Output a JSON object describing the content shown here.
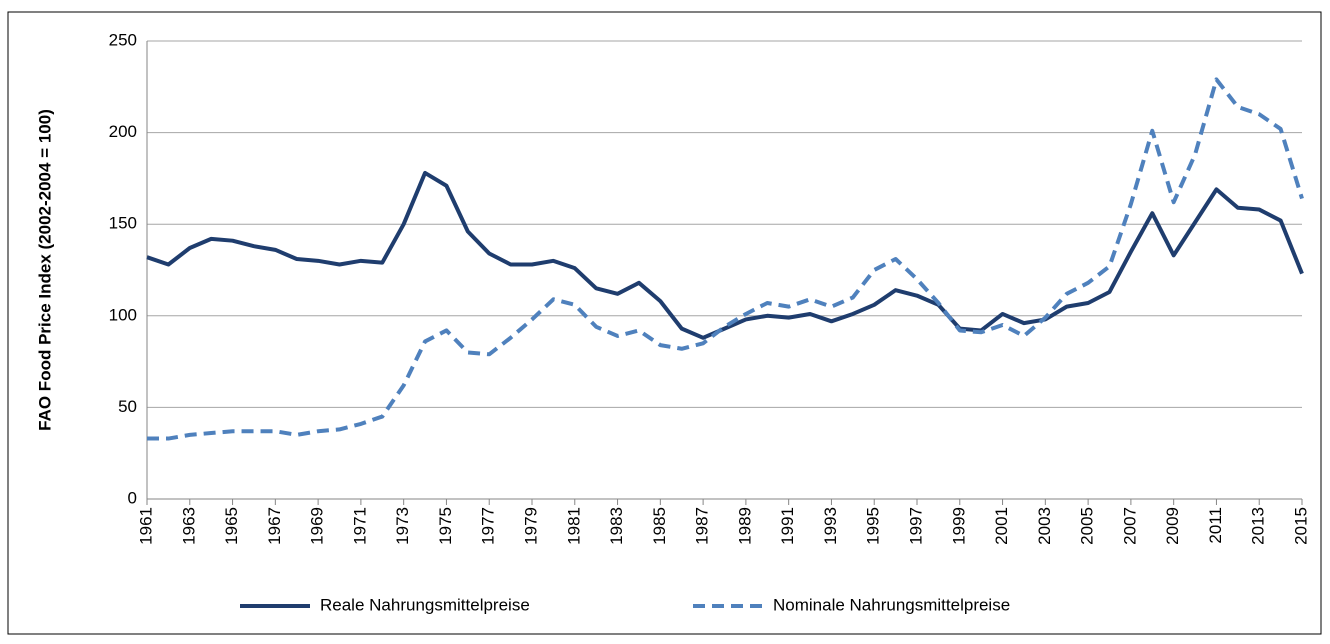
{
  "chart_data": {
    "type": "line",
    "y_label": "FAO Food Price Index (2002-2004 = 100)",
    "x": [
      1961,
      1962,
      1963,
      1964,
      1965,
      1966,
      1967,
      1968,
      1969,
      1970,
      1971,
      1972,
      1973,
      1974,
      1975,
      1976,
      1977,
      1978,
      1979,
      1980,
      1981,
      1982,
      1983,
      1984,
      1985,
      1986,
      1987,
      1988,
      1989,
      1990,
      1991,
      1992,
      1993,
      1994,
      1995,
      1996,
      1997,
      1998,
      1999,
      2000,
      2001,
      2002,
      2003,
      2004,
      2005,
      2006,
      2007,
      2008,
      2009,
      2010,
      2011,
      2012,
      2013,
      2014,
      2015
    ],
    "series": [
      {
        "name": "Reale Nahrungsmittelpreise",
        "color": "#1f3d6e",
        "dashed": false,
        "values": [
          132,
          128,
          137,
          142,
          141,
          138,
          136,
          131,
          130,
          128,
          130,
          129,
          150,
          178,
          171,
          146,
          134,
          128,
          128,
          130,
          126,
          115,
          112,
          118,
          108,
          93,
          88,
          93,
          98,
          100,
          99,
          101,
          97,
          101,
          106,
          114,
          111,
          106,
          93,
          92,
          101,
          96,
          98,
          105,
          107,
          113,
          135,
          156,
          133,
          151,
          169,
          159,
          158,
          152,
          123
        ]
      },
      {
        "name": "Nominale Nahrungsmittelpreise",
        "color": "#4f81bd",
        "dashed": true,
        "values": [
          33,
          33,
          35,
          36,
          37,
          37,
          37,
          35,
          37,
          38,
          41,
          45,
          62,
          86,
          92,
          80,
          79,
          88,
          98,
          109,
          106,
          94,
          89,
          92,
          84,
          82,
          85,
          94,
          101,
          107,
          105,
          109,
          105,
          110,
          125,
          131,
          120,
          107,
          92,
          91,
          95,
          89,
          99,
          112,
          118,
          127,
          161,
          201,
          162,
          188,
          229,
          214,
          210,
          202,
          164
        ]
      }
    ],
    "xlim": [
      1961,
      2015
    ],
    "xticks": [
      1961,
      1963,
      1965,
      1967,
      1969,
      1971,
      1973,
      1975,
      1977,
      1979,
      1981,
      1983,
      1985,
      1987,
      1989,
      1991,
      1993,
      1995,
      1997,
      1999,
      2001,
      2003,
      2005,
      2007,
      2009,
      2011,
      2013,
      2015
    ],
    "ylim": [
      0,
      250
    ],
    "yticks": [
      0,
      50,
      100,
      150,
      200,
      250
    ],
    "grid": true,
    "legend": "bottom"
  }
}
